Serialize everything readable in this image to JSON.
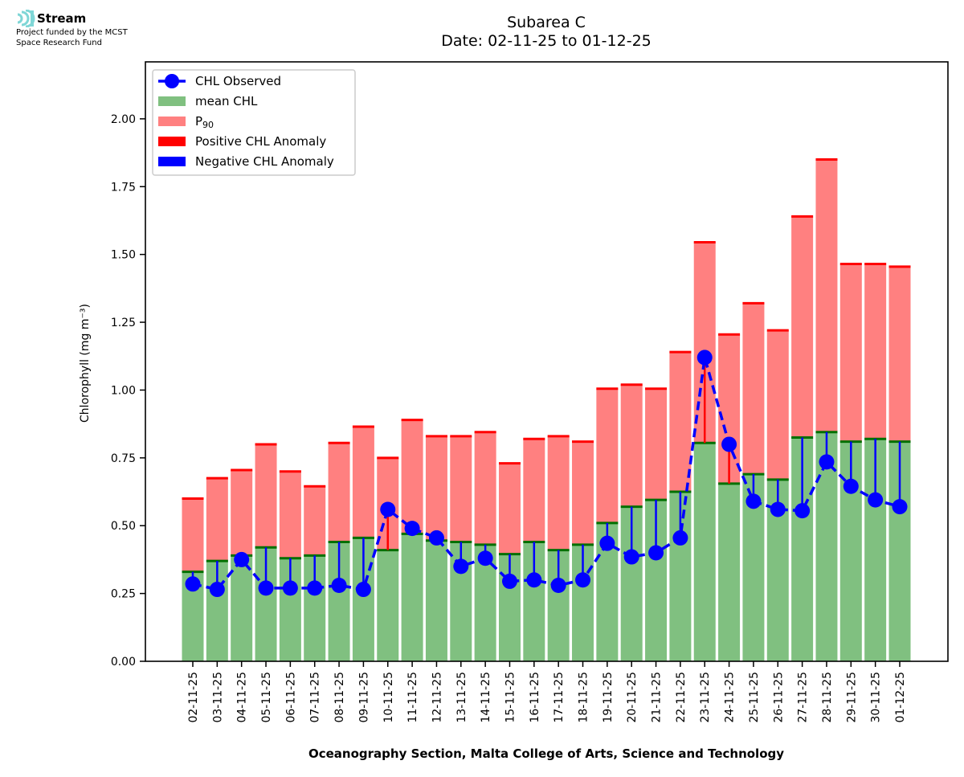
{
  "logo": {
    "name": "Stream",
    "funding_line1": "Project funded by the MCST",
    "funding_line2": "Space Research Fund",
    "accent": "#7fd6d6"
  },
  "chart_data": {
    "type": "bar",
    "title": "Subarea C",
    "subtitle": "Date: 02-11-25 to 01-12-25",
    "xlabel": "Oceanography Section, Malta College of Arts, Science and Technology",
    "ylabel": "Chlorophyll (mg m⁻³)",
    "ylim": [
      0,
      2.21
    ],
    "yticks": [
      "0.00",
      "0.25",
      "0.50",
      "0.75",
      "1.00",
      "1.25",
      "1.50",
      "1.75",
      "2.00"
    ],
    "ytick_values": [
      0,
      0.25,
      0.5,
      0.75,
      1.0,
      1.25,
      1.5,
      1.75,
      2.0
    ],
    "legend_position": "top-left",
    "grid": false,
    "categories": [
      "02-11-25",
      "03-11-25",
      "04-11-25",
      "05-11-25",
      "06-11-25",
      "07-11-25",
      "08-11-25",
      "09-11-25",
      "10-11-25",
      "11-11-25",
      "12-11-25",
      "13-11-25",
      "14-11-25",
      "15-11-25",
      "16-11-25",
      "17-11-25",
      "18-11-25",
      "19-11-25",
      "20-11-25",
      "21-11-25",
      "22-11-25",
      "23-11-25",
      "24-11-25",
      "25-11-25",
      "26-11-25",
      "27-11-25",
      "28-11-25",
      "29-11-25",
      "30-11-25",
      "01-12-25"
    ],
    "series": [
      {
        "name": "mean CHL",
        "color": "#80c080",
        "values": [
          0.33,
          0.37,
          0.39,
          0.42,
          0.38,
          0.39,
          0.44,
          0.455,
          0.41,
          0.47,
          0.445,
          0.44,
          0.43,
          0.395,
          0.44,
          0.41,
          0.43,
          0.51,
          0.57,
          0.595,
          0.625,
          0.805,
          0.655,
          0.69,
          0.67,
          0.825,
          0.845,
          0.81,
          0.82,
          0.81
        ]
      },
      {
        "name": "P90",
        "color": "#ff8080",
        "values": [
          0.6,
          0.675,
          0.705,
          0.8,
          0.7,
          0.645,
          0.805,
          0.865,
          0.75,
          0.89,
          0.83,
          0.83,
          0.845,
          0.73,
          0.82,
          0.83,
          0.81,
          1.005,
          1.02,
          1.005,
          1.14,
          1.545,
          1.205,
          1.32,
          1.22,
          1.64,
          1.85,
          1.465,
          1.465,
          1.455
        ]
      },
      {
        "name": "CHL Observed",
        "color": "#0000ff",
        "values": [
          0.285,
          0.265,
          0.375,
          0.27,
          0.27,
          0.27,
          0.28,
          0.265,
          0.56,
          0.49,
          0.455,
          0.35,
          0.38,
          0.295,
          0.3,
          0.28,
          0.3,
          0.435,
          0.385,
          0.4,
          0.455,
          1.12,
          0.8,
          0.59,
          0.56,
          0.555,
          0.735,
          0.645,
          0.595,
          0.57
        ]
      }
    ],
    "legend": [
      {
        "label": "CHL Observed",
        "kind": "line-marker",
        "color": "#0000ff"
      },
      {
        "label": "mean CHL",
        "kind": "patch",
        "color": "#80c080"
      },
      {
        "label": "P",
        "sub": "90",
        "kind": "patch",
        "color": "#ff8080"
      },
      {
        "label": "Positive CHL Anomaly",
        "kind": "patch",
        "color": "#ff0000"
      },
      {
        "label": "Negative CHL Anomaly",
        "kind": "patch",
        "color": "#0000ff"
      }
    ],
    "colors": {
      "mean_edge": "#007000",
      "p90_edge": "#ff0000",
      "positive_anomaly": "#ff0000",
      "negative_anomaly": "#0000ff"
    }
  }
}
